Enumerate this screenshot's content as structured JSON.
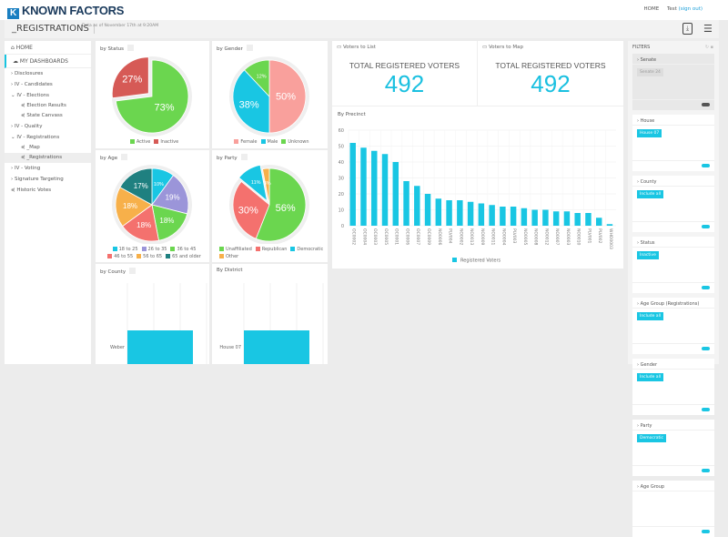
{
  "header": {
    "logo": "KNOWN FACTORS",
    "home_link": "HOME",
    "user": "Test",
    "sign_out": "(sign out)"
  },
  "titlebar": {
    "title": "_REGISTRATIONS",
    "as_of": "Data as of November 17th at 9:20AM"
  },
  "sidebar": {
    "home": "HOME",
    "my_dashboards": "MY DASHBOARDS",
    "items": [
      {
        "label": "Disclosures",
        "type": "folder"
      },
      {
        "label": "IV - Candidates",
        "type": "folder"
      },
      {
        "label": "IV - Elections",
        "type": "folder-open"
      },
      {
        "label": "Election Results",
        "type": "leaf"
      },
      {
        "label": "State Canvass",
        "type": "leaf"
      },
      {
        "label": "IV - Quality",
        "type": "folder"
      },
      {
        "label": "IV - Registrations",
        "type": "folder-open"
      },
      {
        "label": "_Map",
        "type": "leaf"
      },
      {
        "label": "_Registrations",
        "type": "leaf",
        "selected": true
      },
      {
        "label": "IV - Voting",
        "type": "folder"
      },
      {
        "label": "Signature Targeting",
        "type": "folder"
      },
      {
        "label": "Historic Votes",
        "type": "root-leaf"
      }
    ]
  },
  "panels": {
    "status": "by Status",
    "gender": "by Gender",
    "age": "by Age",
    "party": "by Party",
    "county": "by County",
    "district": "By District",
    "list": "Voters to List",
    "map": "Voters to Map",
    "precinct": "By Precinct"
  },
  "kpi": {
    "list_label": "TOTAL REGISTERED VOTERS",
    "list_value": "492",
    "map_label": "TOTAL REGISTERED VOTERS",
    "map_value": "492"
  },
  "chart_data": [
    {
      "type": "pie",
      "id": "status",
      "slices": [
        {
          "name": "Active",
          "value": 73,
          "color": "#6bd64f"
        },
        {
          "name": "Inactive",
          "value": 27,
          "color": "#d65a56",
          "exploded": true
        }
      ]
    },
    {
      "type": "pie",
      "id": "gender",
      "slices": [
        {
          "name": "Female",
          "value": 50,
          "color": "#f9a09c"
        },
        {
          "name": "Male",
          "value": 38,
          "color": "#19c6e3"
        },
        {
          "name": "Unknown",
          "value": 12,
          "color": "#6bd64f"
        }
      ]
    },
    {
      "type": "pie",
      "id": "age",
      "slices": [
        {
          "name": "18 to 25",
          "value": 10,
          "color": "#19c6e3"
        },
        {
          "name": "26 to 35",
          "value": 19,
          "color": "#9b95d9"
        },
        {
          "name": "36 to 45",
          "value": 18,
          "color": "#6bd64f"
        },
        {
          "name": "46 to 55",
          "value": 18,
          "color": "#f4716e"
        },
        {
          "name": "56 to 65",
          "value": 18,
          "color": "#f7b04a"
        },
        {
          "name": "65 and older",
          "value": 17,
          "color": "#1f8080"
        }
      ]
    },
    {
      "type": "pie",
      "id": "party",
      "slices": [
        {
          "name": "Unaffiliated",
          "value": 56,
          "color": "#6bd64f"
        },
        {
          "name": "Republican",
          "value": 30,
          "color": "#f4716e"
        },
        {
          "name": "Democratic",
          "value": 11,
          "color": "#19c6e3",
          "exploded": true
        },
        {
          "name": "Other",
          "value": 3,
          "color": "#f7b04a"
        }
      ]
    },
    {
      "type": "bar",
      "id": "county",
      "orientation": "horizontal",
      "categories": [
        "Weber"
      ],
      "color": "#19c6e3"
    },
    {
      "type": "bar",
      "id": "district",
      "orientation": "horizontal",
      "categories": [
        "House 07"
      ],
      "color": "#19c6e3"
    },
    {
      "type": "bar",
      "id": "precinct",
      "title": "By Precinct",
      "series": [
        {
          "name": "Registered Voters",
          "color": "#19c6e3"
        }
      ],
      "categories": [
        "OC0002",
        "OC0004",
        "OC0003",
        "OC0005",
        "OC0001",
        "OC0006",
        "OC0007",
        "OC0009",
        "NO0006",
        "PLV004",
        "NO0002",
        "NO0013",
        "NO0009",
        "NO0011",
        "NO0004",
        "PLV003",
        "NO0005",
        "NO0008",
        "NO0012",
        "NO0007",
        "NO0003",
        "NO0010",
        "PLV001",
        "PLV002",
        "WHO0003"
      ],
      "values": [
        52,
        49,
        47,
        45,
        40,
        28,
        25,
        20,
        17,
        16,
        16,
        15,
        14,
        13,
        12,
        12,
        11,
        10,
        10,
        9,
        9,
        8,
        8,
        5,
        1
      ],
      "ylim": [
        0,
        60
      ],
      "yticks": [
        0,
        10,
        20,
        30,
        40,
        50,
        60
      ],
      "grid": true,
      "legend": "bottom"
    }
  ],
  "filters": {
    "title": "FILTERS",
    "items": [
      {
        "label": "Senate",
        "value": "Senate 24",
        "enabled": false
      },
      {
        "label": "House",
        "value": "House 07",
        "enabled": true
      },
      {
        "label": "County",
        "value": "Include all",
        "enabled": true
      },
      {
        "label": "Status",
        "value": "Inactive",
        "enabled": true
      },
      {
        "label": "Age Group (Registrations)",
        "value": "Include all",
        "enabled": true
      },
      {
        "label": "Gender",
        "value": "Include all",
        "enabled": true
      },
      {
        "label": "Party",
        "value": "Democratic",
        "enabled": true
      },
      {
        "label": "Age Group",
        "value": "",
        "enabled": true
      }
    ]
  }
}
